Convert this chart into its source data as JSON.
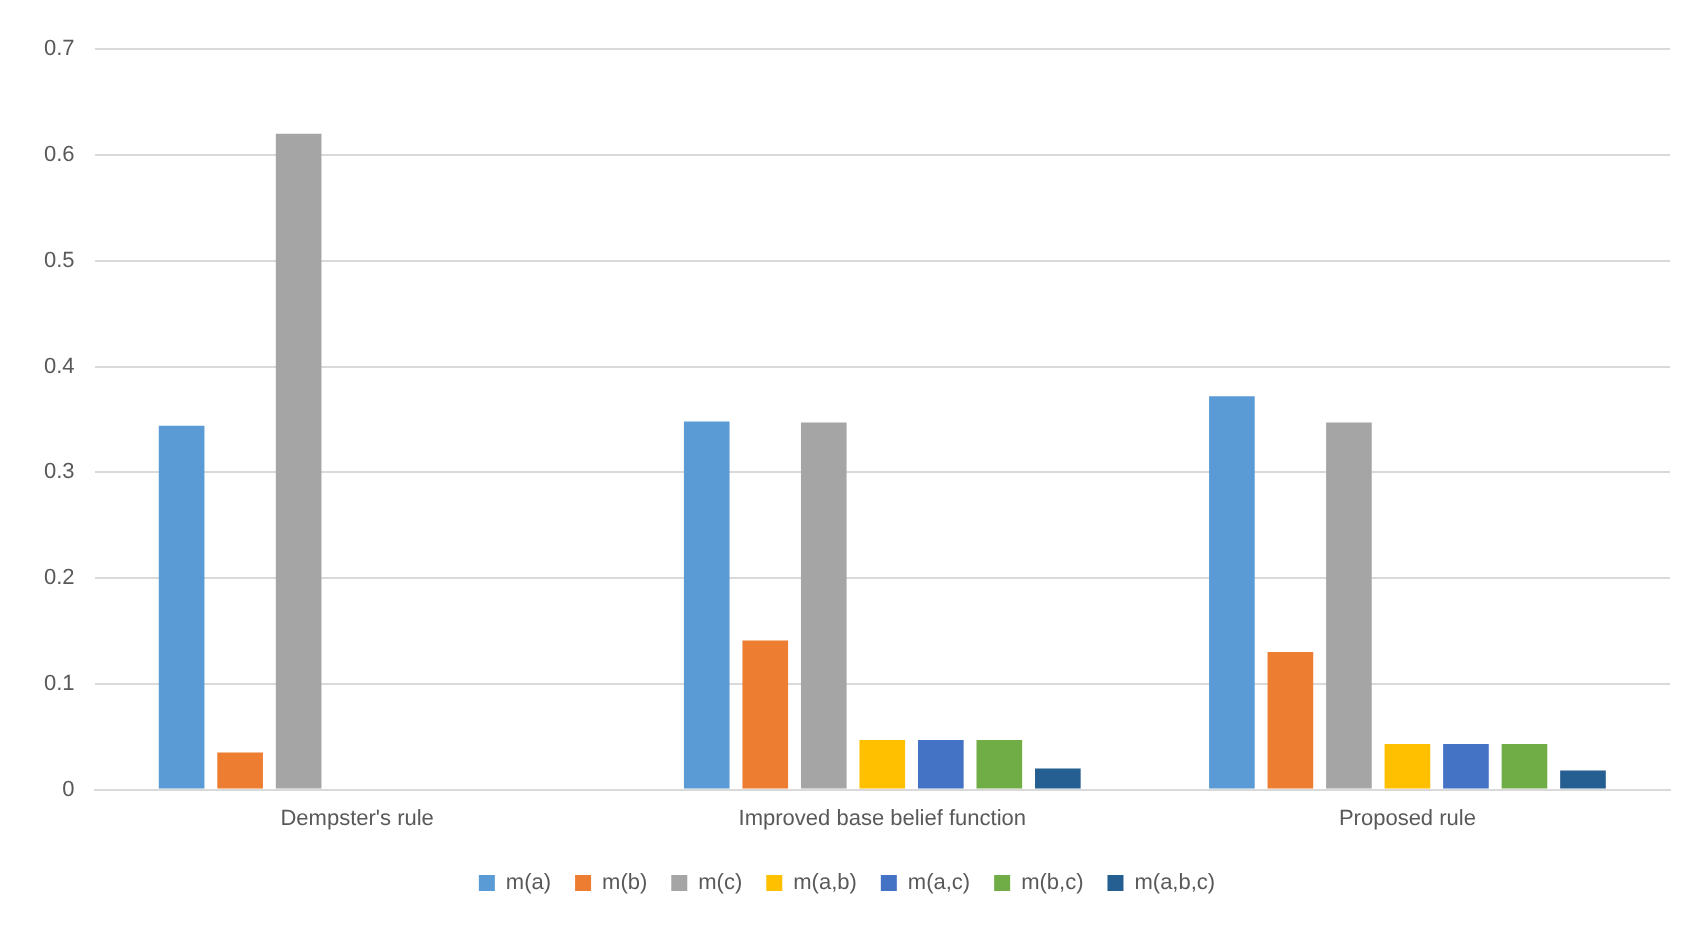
{
  "chart_data": {
    "type": "bar",
    "categories": [
      "Dempster's rule",
      "Improved base belief function",
      "Proposed rule"
    ],
    "series": [
      {
        "name": "m(a)",
        "color": "#5b9bd5",
        "values": [
          0.344,
          0.348,
          0.372
        ]
      },
      {
        "name": "m(b)",
        "color": "#ed7d31",
        "values": [
          0.035,
          0.141,
          0.13
        ]
      },
      {
        "name": "m(c)",
        "color": "#a5a5a5",
        "values": [
          0.62,
          0.347,
          0.347
        ]
      },
      {
        "name": "m(a,b)",
        "color": "#ffc000",
        "values": [
          0,
          0.047,
          0.043
        ]
      },
      {
        "name": "m(a,c)",
        "color": "#4472c4",
        "values": [
          0,
          0.047,
          0.043
        ]
      },
      {
        "name": "m(b,c)",
        "color": "#70ad47",
        "values": [
          0,
          0.047,
          0.043
        ]
      },
      {
        "name": "m(a,b,c)",
        "color": "#255e91",
        "values": [
          0,
          0.02,
          0.018
        ]
      }
    ],
    "ylim": [
      0,
      0.7
    ],
    "yticks": [
      0,
      0.1,
      0.2,
      0.3,
      0.4,
      0.5,
      0.6,
      0.7
    ],
    "grid": "y",
    "legend": "bottom"
  }
}
